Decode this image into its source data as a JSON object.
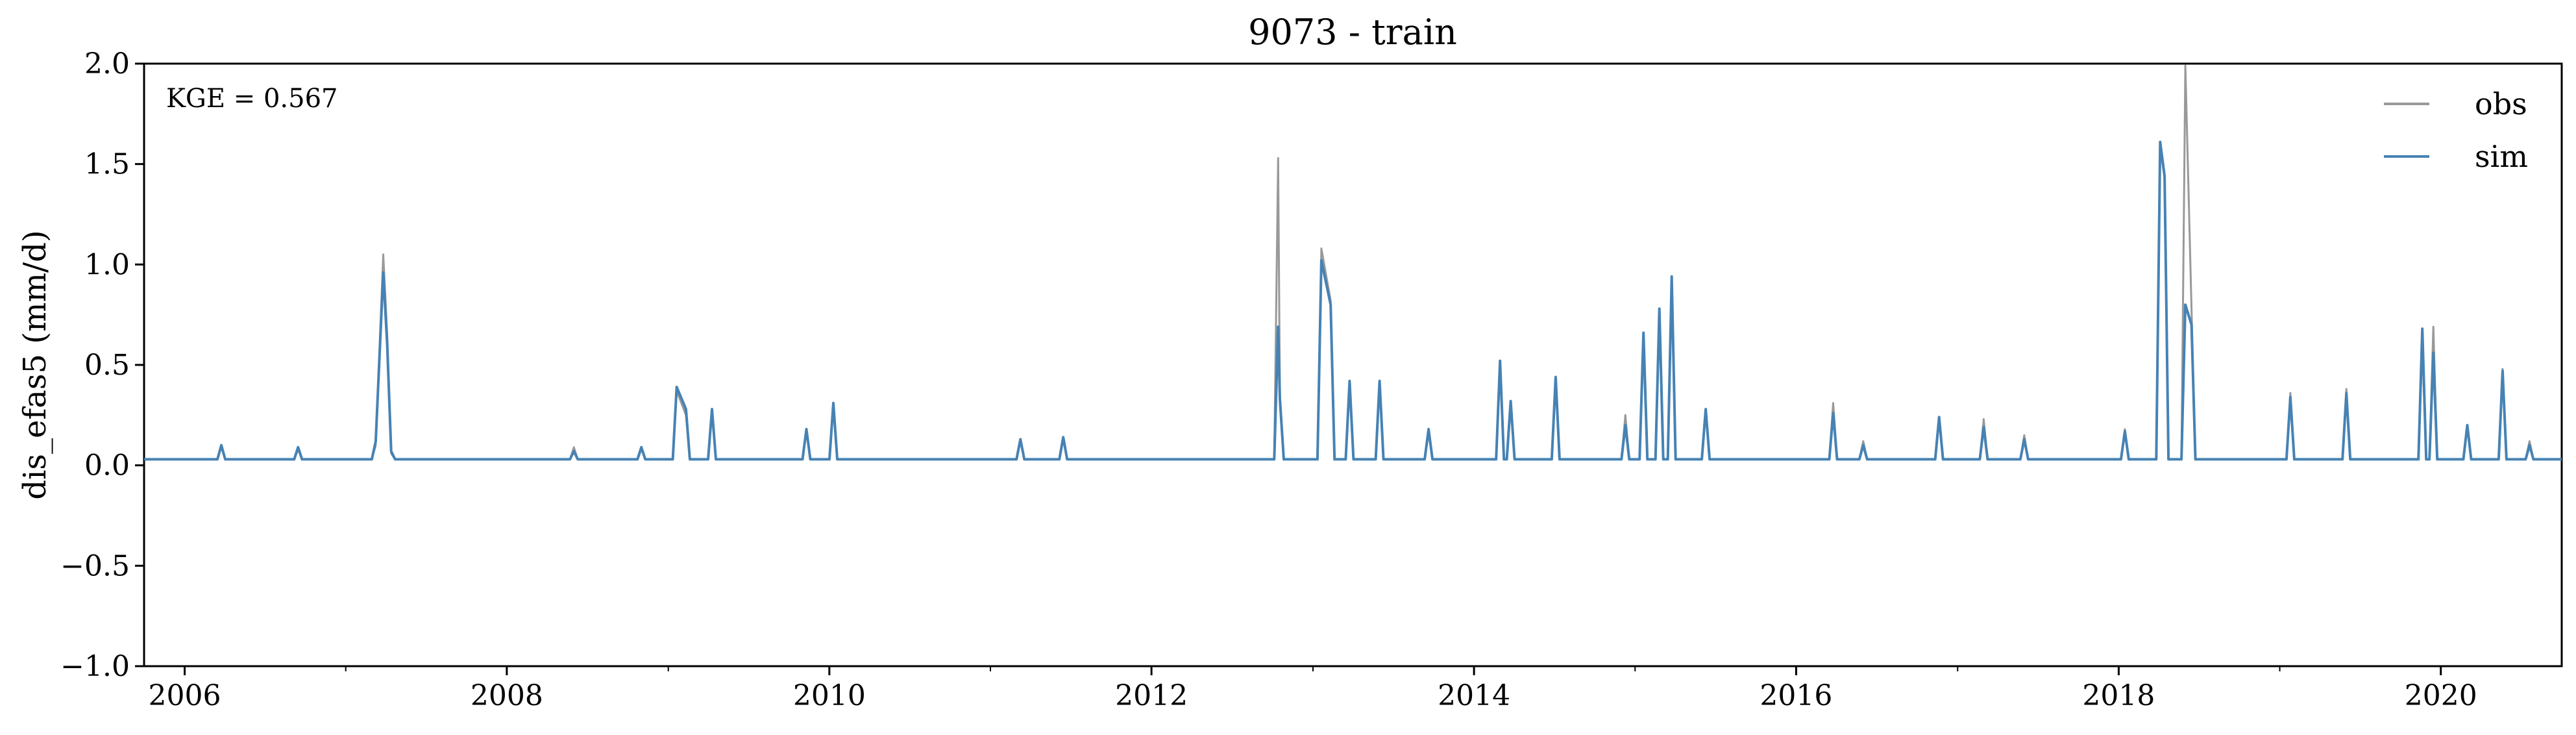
{
  "chart_data": {
    "type": "line",
    "title": "9073 - train",
    "ylabel": "dis_efas5 (mm/d)",
    "xlabel": "",
    "xlim": [
      "2005-10-01",
      "2020-10-01"
    ],
    "ylim": [
      -1.0,
      2.0
    ],
    "x_ticks": [
      {
        "date": "2006-01-01",
        "label": "2006"
      },
      {
        "date": "2008-01-01",
        "label": "2008"
      },
      {
        "date": "2010-01-01",
        "label": "2010"
      },
      {
        "date": "2012-01-01",
        "label": "2012"
      },
      {
        "date": "2014-01-01",
        "label": "2014"
      },
      {
        "date": "2016-01-01",
        "label": "2016"
      },
      {
        "date": "2018-01-01",
        "label": "2018"
      },
      {
        "date": "2020-01-01",
        "label": "2020"
      }
    ],
    "x_minor_ticks": [
      "2007-01-01",
      "2009-01-01",
      "2011-01-01",
      "2013-01-01",
      "2015-01-01",
      "2017-01-01",
      "2019-01-01"
    ],
    "y_ticks": [
      {
        "value": 2.0,
        "label": "2.0"
      },
      {
        "value": 1.5,
        "label": "1.5"
      },
      {
        "value": 1.0,
        "label": "1.0"
      },
      {
        "value": 0.5,
        "label": "0.5"
      },
      {
        "value": 0.0,
        "label": "0.0"
      },
      {
        "value": -0.5,
        "label": "−0.5"
      },
      {
        "value": -1.0,
        "label": "−1.0"
      }
    ],
    "grid": false,
    "legend_position": "top-right",
    "annotation": "KGE = 0.567",
    "baseline": 0.03,
    "series": [
      {
        "name": "obs",
        "color": "#999999",
        "points": [
          [
            "2005-10-01",
            0.03
          ],
          [
            "2006-03-25",
            0.09
          ],
          [
            "2006-09-15",
            0.08
          ],
          [
            "2007-03-10",
            0.1
          ],
          [
            "2007-03-27",
            1.05
          ],
          [
            "2007-04-05",
            0.65
          ],
          [
            "2007-04-14",
            0.06
          ],
          [
            "2008-06-01",
            0.09
          ],
          [
            "2008-11-01",
            0.08
          ],
          [
            "2009-01-20",
            0.37
          ],
          [
            "2009-02-10",
            0.25
          ],
          [
            "2009-04-10",
            0.27
          ],
          [
            "2009-11-10",
            0.17
          ],
          [
            "2010-01-10",
            0.3
          ],
          [
            "2011-03-10",
            0.12
          ],
          [
            "2011-06-15",
            0.13
          ],
          [
            "2012-10-14",
            1.53
          ],
          [
            "2012-10-18",
            0.35
          ],
          [
            "2013-01-20",
            1.08
          ],
          [
            "2013-02-10",
            0.82
          ],
          [
            "2013-03-25",
            0.4
          ],
          [
            "2013-06-01",
            0.42
          ],
          [
            "2013-09-20",
            0.16
          ],
          [
            "2014-03-01",
            0.5
          ],
          [
            "2014-03-25",
            0.3
          ],
          [
            "2014-07-05",
            0.42
          ],
          [
            "2014-12-10",
            0.25
          ],
          [
            "2015-01-20",
            0.6
          ],
          [
            "2015-02-25",
            0.74
          ],
          [
            "2015-03-25",
            0.9
          ],
          [
            "2015-06-10",
            0.27
          ],
          [
            "2016-03-25",
            0.31
          ],
          [
            "2016-06-01",
            0.12
          ],
          [
            "2016-11-20",
            0.24
          ],
          [
            "2017-03-01",
            0.23
          ],
          [
            "2017-06-01",
            0.15
          ],
          [
            "2018-01-15",
            0.18
          ],
          [
            "2018-04-05",
            1.58
          ],
          [
            "2018-04-15",
            1.43
          ],
          [
            "2018-06-01",
            1.99
          ],
          [
            "2018-06-15",
            0.78
          ],
          [
            "2019-01-25",
            0.36
          ],
          [
            "2019-06-01",
            0.38
          ],
          [
            "2019-11-20",
            0.6
          ],
          [
            "2019-12-15",
            0.69
          ],
          [
            "2020-03-01",
            0.2
          ],
          [
            "2020-05-20",
            0.48
          ],
          [
            "2020-07-20",
            0.12
          ],
          [
            "2020-10-01",
            0.03
          ]
        ]
      },
      {
        "name": "sim",
        "color": "#4682b4",
        "points": [
          [
            "2005-10-01",
            0.03
          ],
          [
            "2006-03-25",
            0.1
          ],
          [
            "2006-09-15",
            0.09
          ],
          [
            "2007-03-10",
            0.12
          ],
          [
            "2007-03-27",
            0.96
          ],
          [
            "2007-04-05",
            0.6
          ],
          [
            "2007-04-14",
            0.07
          ],
          [
            "2008-06-01",
            0.07
          ],
          [
            "2008-11-01",
            0.09
          ],
          [
            "2009-01-20",
            0.39
          ],
          [
            "2009-02-10",
            0.28
          ],
          [
            "2009-04-10",
            0.28
          ],
          [
            "2009-11-10",
            0.18
          ],
          [
            "2010-01-10",
            0.31
          ],
          [
            "2011-03-10",
            0.13
          ],
          [
            "2011-06-15",
            0.14
          ],
          [
            "2012-10-14",
            0.69
          ],
          [
            "2012-10-18",
            0.33
          ],
          [
            "2013-01-20",
            1.02
          ],
          [
            "2013-02-10",
            0.8
          ],
          [
            "2013-03-25",
            0.42
          ],
          [
            "2013-06-01",
            0.42
          ],
          [
            "2013-09-20",
            0.18
          ],
          [
            "2014-03-01",
            0.52
          ],
          [
            "2014-03-25",
            0.32
          ],
          [
            "2014-07-05",
            0.44
          ],
          [
            "2014-12-10",
            0.2
          ],
          [
            "2015-01-20",
            0.66
          ],
          [
            "2015-02-25",
            0.78
          ],
          [
            "2015-03-25",
            0.94
          ],
          [
            "2015-06-10",
            0.28
          ],
          [
            "2016-03-25",
            0.26
          ],
          [
            "2016-06-01",
            0.1
          ],
          [
            "2016-11-20",
            0.24
          ],
          [
            "2017-03-01",
            0.19
          ],
          [
            "2017-06-01",
            0.13
          ],
          [
            "2018-01-15",
            0.17
          ],
          [
            "2018-04-05",
            1.61
          ],
          [
            "2018-04-15",
            1.44
          ],
          [
            "2018-06-01",
            0.8
          ],
          [
            "2018-06-15",
            0.7
          ],
          [
            "2019-01-25",
            0.34
          ],
          [
            "2019-06-01",
            0.36
          ],
          [
            "2019-11-20",
            0.68
          ],
          [
            "2019-12-15",
            0.56
          ],
          [
            "2020-03-01",
            0.2
          ],
          [
            "2020-05-20",
            0.47
          ],
          [
            "2020-07-20",
            0.1
          ],
          [
            "2020-10-01",
            0.03
          ]
        ]
      }
    ]
  }
}
